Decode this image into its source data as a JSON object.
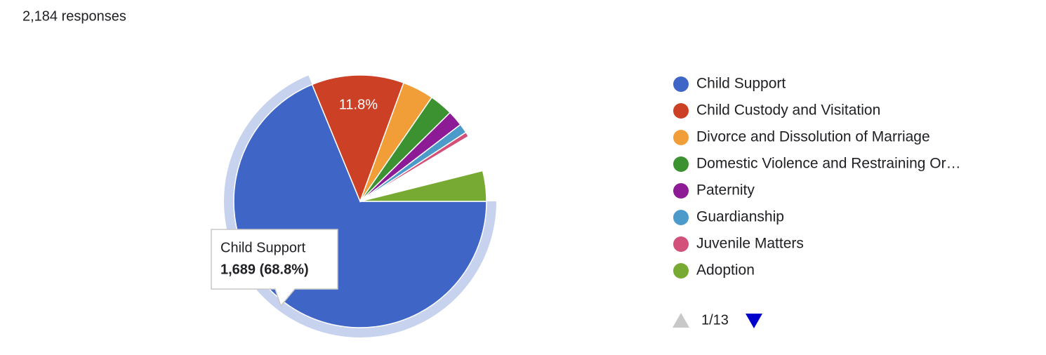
{
  "chart_data": {
    "type": "pie",
    "title": "2,184 responses",
    "categories": [
      "Child Support",
      "Child Custody and Visitation",
      "Divorce and Dissolution of Marriage",
      "Domestic Violence and Restraining Or…",
      "Paternity",
      "Guardianship",
      "Juvenile Matters",
      "Adoption"
    ],
    "values": [
      68.8,
      11.8,
      4.0,
      3.0,
      2.0,
      1.2,
      0.6,
      3.9
    ],
    "value_labels": [
      null,
      "11.8%",
      null,
      null,
      null,
      null,
      null,
      null
    ],
    "colors": [
      "#3f66c7",
      "#cc4125",
      "#f29e38",
      "#3c9130",
      "#8e1b96",
      "#4b9ac9",
      "#d3507a",
      "#77aa33"
    ],
    "tooltip": {
      "label": "Child Support",
      "text": "1,689 (68.8%)"
    },
    "legend_page": "1/13"
  }
}
